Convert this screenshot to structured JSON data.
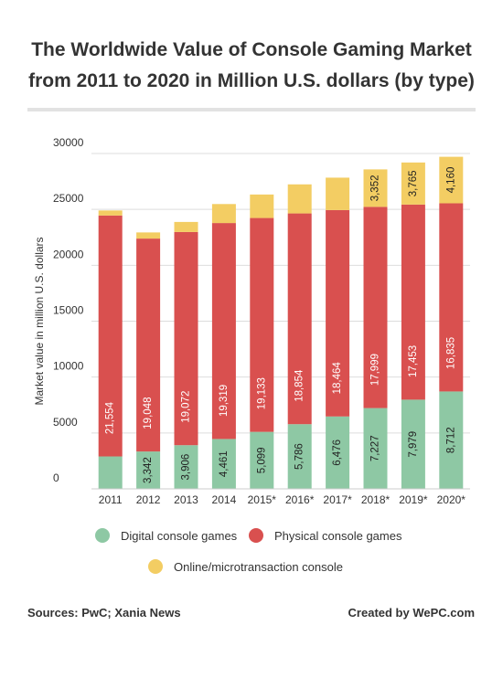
{
  "colors": {
    "digital": "#8ec8a4",
    "physical": "#d9504f",
    "online": "#f3cd63",
    "grid": "#dddddd",
    "text": "#333333"
  },
  "chart_data": {
    "type": "bar",
    "stacked": true,
    "title_line1": "The Worldwide Value of Console Gaming Market",
    "title_line2": "from 2011 to 2020 in Million U.S. dollars (by type)",
    "ylabel": "Market value in million U.S. dollars",
    "ylim": [
      0,
      30000
    ],
    "yticks": [
      0,
      5000,
      10000,
      15000,
      20000,
      25000,
      30000
    ],
    "grid": true,
    "categories": [
      "2011",
      "2012",
      "2013",
      "2014",
      "2015*",
      "2016*",
      "2017*",
      "2018*",
      "2019*",
      "2020*"
    ],
    "series": [
      {
        "name": "Digital console games",
        "key": "digital",
        "values": [
          2900,
          3342,
          3906,
          4461,
          5099,
          5786,
          6476,
          7227,
          7979,
          8712
        ],
        "labels": [
          "",
          "3,342",
          "3,906",
          "4,461",
          "5,099",
          "5,786",
          "6,476",
          "7,227",
          "7,979",
          "8,712"
        ]
      },
      {
        "name": "Physical console games",
        "key": "physical",
        "values": [
          21554,
          19048,
          19072,
          19319,
          19133,
          18854,
          18464,
          17999,
          17453,
          16835
        ],
        "labels": [
          "21,554",
          "19,048",
          "19,072",
          "19,319",
          "19,133",
          "18,854",
          "18,464",
          "17,999",
          "17,453",
          "16,835"
        ]
      },
      {
        "name": "Online/microtransaction console",
        "key": "online",
        "values": [
          450,
          550,
          900,
          1700,
          2100,
          2600,
          2900,
          3352,
          3765,
          4160
        ],
        "labels": [
          "",
          "",
          "",
          "",
          "",
          "",
          "",
          "3,352",
          "3,765",
          "4,160"
        ]
      }
    ],
    "legend_position": "bottom"
  },
  "footer": {
    "sources": "Sources: PwC; Xania News",
    "credit": "Created by WePC.com"
  }
}
